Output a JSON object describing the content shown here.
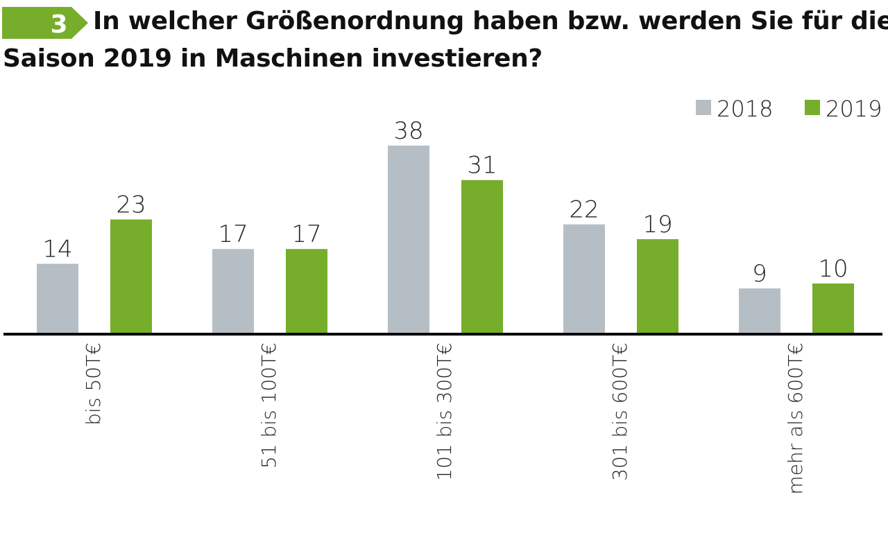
{
  "header": {
    "number": "3",
    "title_line1": "In welcher Größenordnung haben bzw. werden Sie für die",
    "title_line2": "Saison 2019 in Maschinen investieren?",
    "accent_color": "#76ad2a"
  },
  "chart_data": {
    "type": "bar",
    "title": "In welcher Größenordnung haben bzw. werden Sie für die Saison 2019 in Maschinen investieren?",
    "categories": [
      "bis 50T€",
      "51 bis 100T€",
      "101 bis 300T€",
      "301 bis 600T€",
      "mehr als 600T€"
    ],
    "series": [
      {
        "name": "2018",
        "color": "#b6bec5",
        "values": [
          14,
          17,
          38,
          22,
          9
        ]
      },
      {
        "name": "2019",
        "color": "#76ad2a",
        "values": [
          23,
          17,
          31,
          19,
          10
        ]
      }
    ],
    "xlabel": "",
    "ylabel": "",
    "ylim": [
      0,
      38
    ],
    "grid": false,
    "legend": "top-right"
  }
}
